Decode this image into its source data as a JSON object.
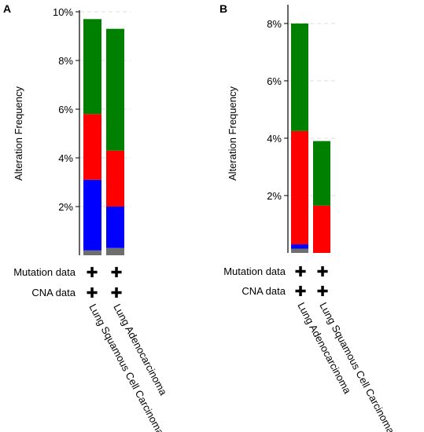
{
  "colors": {
    "gray": "#6e6e6e",
    "blue": "#0000ff",
    "red": "#ff0000",
    "green": "#008000"
  },
  "row_labels": {
    "mutation": "Mutation data",
    "cna": "CNA data"
  },
  "plus_symbol": "✚",
  "chart_data": [
    {
      "panel": "A",
      "type": "bar",
      "stacked": true,
      "ylabel": "Alteration Frequency",
      "ylim": [
        0,
        10
      ],
      "yticks": [
        "2%",
        "4%",
        "6%",
        "8%",
        "10%"
      ],
      "grid": "dashed horizontal",
      "categories": [
        "Lung Squamous Cell Carcinoma",
        "Lung Adenocarcinoma"
      ],
      "series": [
        {
          "color_key": "gray",
          "values": [
            0.2,
            0.3
          ]
        },
        {
          "color_key": "blue",
          "values": [
            2.9,
            1.7
          ]
        },
        {
          "color_key": "red",
          "values": [
            2.7,
            2.3
          ]
        },
        {
          "color_key": "green",
          "values": [
            3.9,
            5.0
          ]
        }
      ]
    },
    {
      "panel": "B",
      "type": "bar",
      "stacked": true,
      "ylabel": "Alteration Frequency",
      "ylim": [
        0,
        8.6
      ],
      "yticks": [
        "2%",
        "4%",
        "6%",
        "8%"
      ],
      "grid": "dashed horizontal",
      "categories": [
        "Lung Adenocarcinoma",
        "Lung Squamous Cell Carcinoma"
      ],
      "series": [
        {
          "color_key": "gray",
          "values": [
            0.15,
            0.0
          ]
        },
        {
          "color_key": "blue",
          "values": [
            0.15,
            0.0
          ]
        },
        {
          "color_key": "red",
          "values": [
            3.95,
            1.65
          ]
        },
        {
          "color_key": "green",
          "values": [
            3.75,
            2.25
          ]
        }
      ]
    }
  ]
}
